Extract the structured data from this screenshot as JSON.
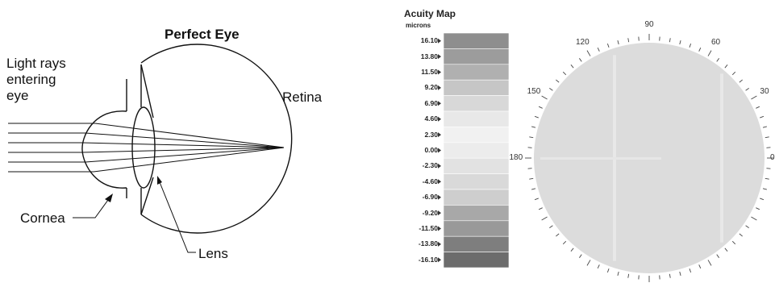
{
  "eye_diagram": {
    "title": "Perfect Eye",
    "labels": {
      "light_rays": [
        "Light rays",
        "entering",
        "eye"
      ],
      "retina": "Retina",
      "cornea": "Cornea",
      "lens": "Lens"
    }
  },
  "acuity_map": {
    "title": "Acuity Map",
    "unit": "microns",
    "scale": [
      "16.10",
      "13.80",
      "11.50",
      "9.20",
      "6.90",
      "4.60",
      "2.30",
      "0.00",
      "-2.30",
      "-4.60",
      "-6.90",
      "-9.20",
      "-11.50",
      "-13.80",
      "-16.10"
    ],
    "scale_colors": [
      "#8e8e8e",
      "#9c9c9c",
      "#b0b0b0",
      "#c6c6c6",
      "#d8d8d8",
      "#e8e8e8",
      "#f1f1f1",
      "#ececec",
      "#e2e2e2",
      "#d9d9d9",
      "#cecece",
      "#a8a8a8",
      "#999999",
      "#7e7e7e",
      "#6c6c6c"
    ],
    "angles": [
      "90",
      "120",
      "60",
      "150",
      "30",
      "180",
      "0"
    ],
    "map_color": "#dcdcdc"
  }
}
